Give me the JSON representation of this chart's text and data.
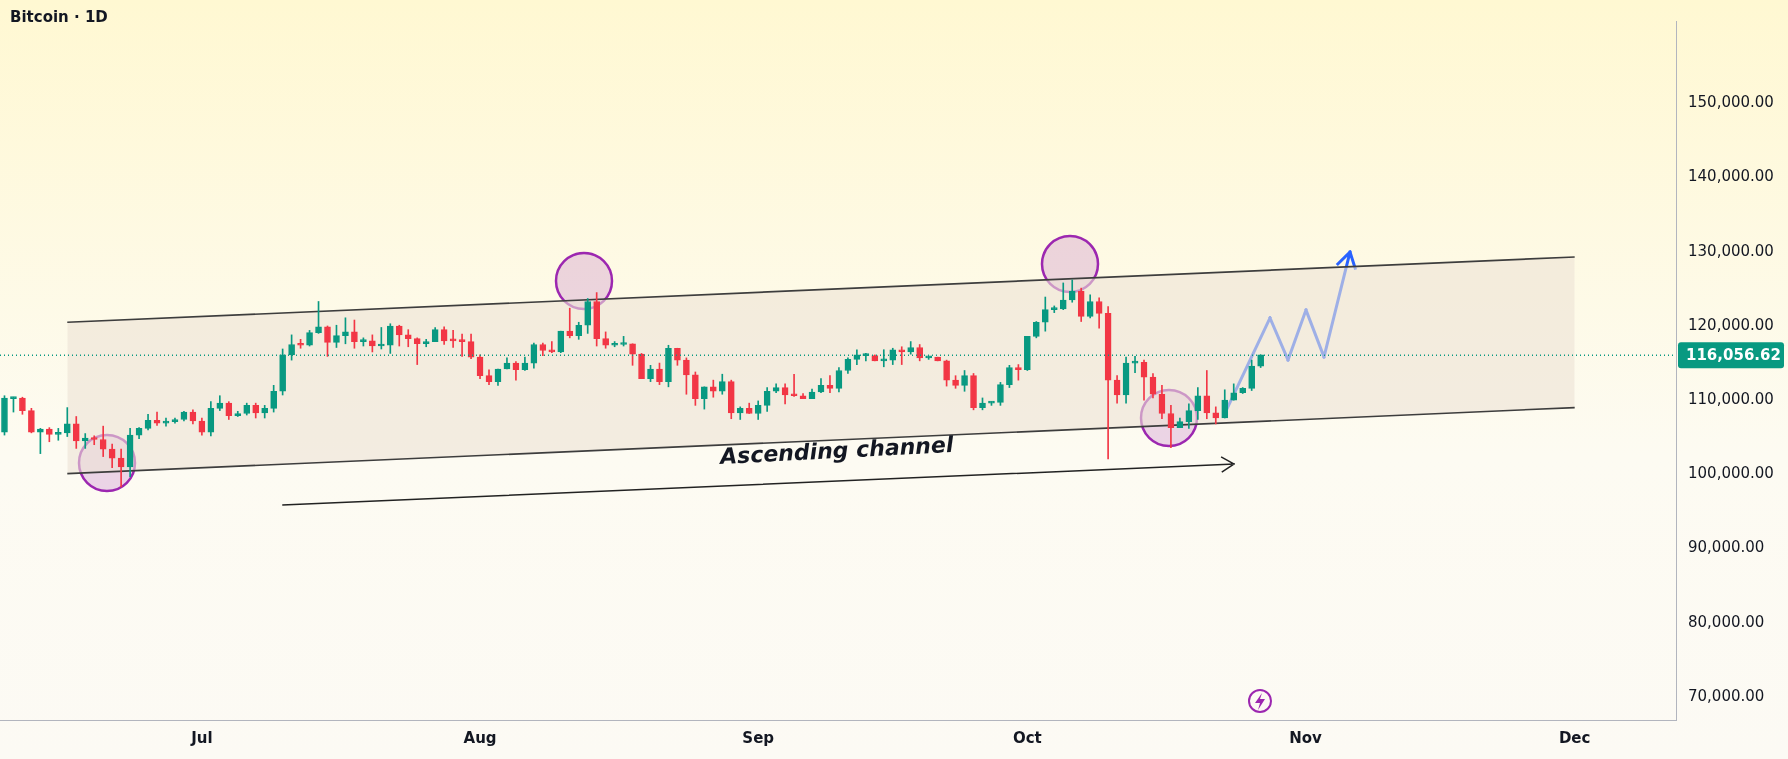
{
  "chart_data": {
    "type": "candlestick",
    "title": "Bitcoin · 1D",
    "x": [
      "--06-09",
      "--06-10",
      "--06-11",
      "--06-12",
      "--06-13",
      "--06-14",
      "--06-15",
      "--06-16",
      "--06-17",
      "--06-18",
      "--06-19",
      "--06-20",
      "--06-21",
      "--06-22",
      "--06-23",
      "--06-24",
      "--06-25",
      "--06-26",
      "--06-27",
      "--06-28",
      "--06-29",
      "--06-30",
      "--07-01",
      "--07-02",
      "--07-03",
      "--07-04",
      "--07-05",
      "--07-06",
      "--07-07",
      "--07-08",
      "--07-09",
      "--07-10",
      "--07-11",
      "--07-12",
      "--07-13",
      "--07-14",
      "--07-15",
      "--07-16",
      "--07-17",
      "--07-18",
      "--07-19",
      "--07-20",
      "--07-21",
      "--07-22",
      "--07-23",
      "--07-24",
      "--07-25",
      "--07-26",
      "--07-27",
      "--07-28",
      "--07-29",
      "--07-30",
      "--07-31",
      "--08-01",
      "--08-02",
      "--08-03",
      "--08-04",
      "--08-05",
      "--08-06",
      "--08-07",
      "--08-08",
      "--08-09",
      "--08-10",
      "--08-11",
      "--08-12",
      "--08-13",
      "--08-14",
      "--08-15",
      "--08-16",
      "--08-17",
      "--08-18",
      "--08-19",
      "--08-20",
      "--08-21",
      "--08-22",
      "--08-23",
      "--08-24",
      "--08-25",
      "--08-26",
      "--08-27",
      "--08-28",
      "--08-29",
      "--08-30",
      "--08-31",
      "--09-01",
      "--09-02",
      "--09-03",
      "--09-04",
      "--09-05",
      "--09-06",
      "--09-07",
      "--09-08",
      "--09-09",
      "--09-10",
      "--09-11",
      "--09-12",
      "--09-13",
      "--09-14",
      "--09-15",
      "--09-16",
      "--09-17",
      "--09-18",
      "--09-19",
      "--09-20",
      "--09-21",
      "--09-22",
      "--09-23",
      "--09-24",
      "--09-25",
      "--09-26",
      "--09-27",
      "--09-28",
      "--09-29",
      "--09-30",
      "--10-01",
      "--10-02",
      "--10-03",
      "--10-04",
      "--10-05",
      "--10-06",
      "--10-07",
      "--10-08",
      "--10-09",
      "--10-10",
      "--10-11",
      "--10-12",
      "--10-13",
      "--10-14",
      "--10-15",
      "--10-16",
      "--10-17",
      "--10-18",
      "--10-19",
      "--10-20",
      "--10-21",
      "--10-22",
      "--10-23",
      "--10-24",
      "--10-25",
      "--10-26",
      "--10-27"
    ],
    "ohlc": [
      [
        105700,
        110600,
        105300,
        110300
      ],
      [
        110200,
        110400,
        108400,
        110300
      ],
      [
        110300,
        110400,
        108100,
        108600
      ],
      [
        108600,
        108900,
        105600,
        105700
      ],
      [
        105700,
        106200,
        102800,
        106100
      ],
      [
        106100,
        106300,
        104400,
        105400
      ],
      [
        105400,
        106200,
        104600,
        105600
      ],
      [
        105600,
        109000,
        105100,
        106800
      ],
      [
        106800,
        107800,
        103500,
        104500
      ],
      [
        104500,
        105500,
        103500,
        104900
      ],
      [
        104900,
        105200,
        104000,
        104700
      ],
      [
        104700,
        106500,
        102400,
        103400
      ],
      [
        103400,
        104100,
        100900,
        102200
      ],
      [
        102200,
        103400,
        98300,
        101000
      ],
      [
        101000,
        106200,
        99700,
        105300
      ],
      [
        105300,
        106300,
        104800,
        106200
      ],
      [
        106200,
        108100,
        106000,
        107300
      ],
      [
        107300,
        108400,
        106600,
        106900
      ],
      [
        106900,
        107600,
        106500,
        107100
      ],
      [
        107100,
        107600,
        106900,
        107400
      ],
      [
        107400,
        108500,
        107200,
        108400
      ],
      [
        108400,
        108700,
        106800,
        107200
      ],
      [
        107200,
        107600,
        105300,
        105700
      ],
      [
        105700,
        109800,
        105200,
        108900
      ],
      [
        108900,
        110600,
        108600,
        109600
      ],
      [
        109600,
        109800,
        107400,
        107900
      ],
      [
        107900,
        108500,
        107800,
        108200
      ],
      [
        108200,
        109600,
        108000,
        109300
      ],
      [
        109300,
        109600,
        107600,
        108300
      ],
      [
        108300,
        109300,
        107600,
        108900
      ],
      [
        108900,
        112000,
        108400,
        111200
      ],
      [
        111200,
        116900,
        110700,
        116100
      ],
      [
        116100,
        118800,
        115400,
        117500
      ],
      [
        117500,
        118200,
        117000,
        117400
      ],
      [
        117400,
        119400,
        117300,
        119100
      ],
      [
        119100,
        123300,
        119000,
        119900
      ],
      [
        119900,
        120000,
        115900,
        117800
      ],
      [
        117800,
        120100,
        117100,
        118700
      ],
      [
        118700,
        121100,
        117600,
        119200
      ],
      [
        119200,
        120800,
        117000,
        117900
      ],
      [
        117900,
        118400,
        117300,
        118000
      ],
      [
        118000,
        118800,
        116500,
        117300
      ],
      [
        117300,
        119800,
        116900,
        117400
      ],
      [
        117400,
        120300,
        116300,
        120000
      ],
      [
        120000,
        120100,
        117300,
        118800
      ],
      [
        118800,
        119500,
        117200,
        118300
      ],
      [
        118300,
        118400,
        114800,
        117600
      ],
      [
        117600,
        118200,
        117200,
        117900
      ],
      [
        117900,
        119800,
        117900,
        119500
      ],
      [
        119500,
        119900,
        117500,
        118000
      ],
      [
        118100,
        119400,
        117100,
        118000
      ],
      [
        118000,
        118900,
        115900,
        117900
      ],
      [
        117900,
        118900,
        115600,
        115800
      ],
      [
        115800,
        116100,
        112900,
        113300
      ],
      [
        113300,
        114100,
        112100,
        112500
      ],
      [
        112500,
        114200,
        112000,
        114200
      ],
      [
        114200,
        115700,
        114200,
        115000
      ],
      [
        115000,
        115200,
        112700,
        114100
      ],
      [
        114100,
        115800,
        114000,
        115000
      ],
      [
        115000,
        117700,
        114300,
        117500
      ],
      [
        117500,
        117700,
        116000,
        116700
      ],
      [
        116700,
        117900,
        116400,
        116500
      ],
      [
        116500,
        119300,
        116400,
        119300
      ],
      [
        119300,
        122400,
        118400,
        118700
      ],
      [
        118700,
        120500,
        118200,
        120100
      ],
      [
        120100,
        123700,
        119000,
        123300
      ],
      [
        123300,
        124500,
        117300,
        118300
      ],
      [
        118300,
        119200,
        117000,
        117400
      ],
      [
        117400,
        117900,
        117200,
        117500
      ],
      [
        117500,
        118600,
        117300,
        117600
      ],
      [
        117600,
        117600,
        114700,
        116200
      ],
      [
        116200,
        116300,
        112900,
        112900
      ],
      [
        112900,
        114700,
        112500,
        114200
      ],
      [
        114200,
        115000,
        112100,
        112500
      ],
      [
        112500,
        117400,
        111800,
        117000
      ],
      [
        117000,
        117000,
        114700,
        115400
      ],
      [
        115400,
        115700,
        110800,
        113400
      ],
      [
        113400,
        113800,
        109300,
        110200
      ],
      [
        110200,
        111800,
        108800,
        111800
      ],
      [
        111800,
        112700,
        110400,
        111200
      ],
      [
        111200,
        113500,
        110800,
        112500
      ],
      [
        112500,
        112700,
        107500,
        108300
      ],
      [
        108300,
        109100,
        107400,
        108900
      ],
      [
        108900,
        109600,
        108200,
        108200
      ],
      [
        108200,
        109900,
        107400,
        109300
      ],
      [
        109300,
        111700,
        108500,
        111200
      ],
      [
        111200,
        112200,
        111000,
        111700
      ],
      [
        111700,
        112200,
        109500,
        110700
      ],
      [
        110700,
        113500,
        110500,
        110600
      ],
      [
        110600,
        110900,
        110200,
        110200
      ],
      [
        110200,
        111500,
        110200,
        111100
      ],
      [
        111100,
        112900,
        111000,
        112000
      ],
      [
        112000,
        113300,
        111000,
        111600
      ],
      [
        111600,
        114400,
        111100,
        114000
      ],
      [
        114000,
        115700,
        113600,
        115500
      ],
      [
        115500,
        116800,
        114800,
        116100
      ],
      [
        116000,
        116300,
        115300,
        116100
      ],
      [
        116000,
        116100,
        115300,
        115300
      ],
      [
        115300,
        116800,
        114500,
        115400
      ],
      [
        115400,
        117000,
        114800,
        116800
      ],
      [
        116800,
        117200,
        114800,
        116500
      ],
      [
        116500,
        117900,
        116200,
        117100
      ],
      [
        117100,
        117500,
        115300,
        115700
      ],
      [
        115700,
        115900,
        115500,
        115800
      ],
      [
        115800,
        115800,
        115300,
        115300
      ],
      [
        115300,
        115400,
        111900,
        112700
      ],
      [
        112700,
        113300,
        111600,
        112000
      ],
      [
        112000,
        114000,
        111200,
        113300
      ],
      [
        113300,
        113600,
        108700,
        109000
      ],
      [
        109000,
        110300,
        108700,
        109600
      ],
      [
        109600,
        109800,
        109300,
        109700
      ],
      [
        109700,
        112400,
        109300,
        112100
      ],
      [
        112100,
        114700,
        111700,
        114400
      ],
      [
        114400,
        114800,
        112700,
        114100
      ],
      [
        114100,
        118600,
        114000,
        118600
      ],
      [
        118600,
        120600,
        118400,
        120500
      ],
      [
        120500,
        123900,
        119300,
        122200
      ],
      [
        122200,
        122700,
        121800,
        122300
      ],
      [
        122300,
        125800,
        122200,
        123500
      ],
      [
        123500,
        126200,
        123200,
        124700
      ],
      [
        124700,
        125100,
        120600,
        121300
      ],
      [
        121300,
        124200,
        121100,
        123300
      ],
      [
        123300,
        123800,
        119700,
        121700
      ],
      [
        121700,
        122600,
        102100,
        112700
      ],
      [
        112700,
        113300,
        109600,
        110700
      ],
      [
        110700,
        115800,
        109600,
        115000
      ],
      [
        115000,
        115900,
        113700,
        115100
      ],
      [
        115100,
        115400,
        110000,
        113100
      ],
      [
        113100,
        113600,
        110300,
        110800
      ],
      [
        110800,
        112000,
        107500,
        108200
      ],
      [
        108200,
        109300,
        103600,
        106300
      ],
      [
        106300,
        107600,
        106300,
        107100
      ],
      [
        107100,
        109500,
        106200,
        108600
      ],
      [
        108600,
        111700,
        107400,
        110600
      ],
      [
        110600,
        114000,
        107500,
        108300
      ],
      [
        108300,
        109100,
        106800,
        107600
      ],
      [
        107600,
        111400,
        107600,
        110000
      ],
      [
        110000,
        112200,
        110000,
        111000
      ],
      [
        111000,
        111700,
        110900,
        111600
      ],
      [
        111600,
        115400,
        111300,
        114600
      ],
      [
        114600,
        116100,
        114400,
        116100
      ]
    ],
    "colors": [
      "#089981",
      "#089981",
      "#f23645",
      "#f23645",
      "#089981",
      "#f23645",
      "#089981",
      "#089981",
      "#f23645",
      "#089981",
      "#f23645",
      "#f23645",
      "#f23645",
      "#f23645",
      "#089981",
      "#089981",
      "#089981",
      "#f23645",
      "#089981",
      "#089981",
      "#089981",
      "#f23645",
      "#f23645",
      "#089981",
      "#089981",
      "#f23645",
      "#089981",
      "#089981",
      "#f23645",
      "#089981",
      "#089981",
      "#089981",
      "#089981",
      "#f23645",
      "#089981",
      "#089981",
      "#f23645",
      "#089981",
      "#089981",
      "#f23645",
      "#089981",
      "#f23645",
      "#089981",
      "#089981",
      "#f23645",
      "#f23645",
      "#f23645",
      "#089981",
      "#089981",
      "#f23645",
      "#f23645",
      "#f23645",
      "#f23645",
      "#f23645",
      "#f23645",
      "#089981",
      "#089981",
      "#f23645",
      "#089981",
      "#089981",
      "#f23645",
      "#f23645",
      "#089981",
      "#f23645",
      "#089981",
      "#089981",
      "#f23645",
      "#f23645",
      "#089981",
      "#089981",
      "#f23645",
      "#f23645",
      "#089981",
      "#f23645",
      "#089981",
      "#f23645",
      "#f23645",
      "#f23645",
      "#089981",
      "#f23645",
      "#089981",
      "#f23645",
      "#089981",
      "#f23645",
      "#089981",
      "#089981",
      "#089981",
      "#f23645",
      "#f23645",
      "#f23645",
      "#089981",
      "#089981",
      "#f23645",
      "#089981",
      "#089981",
      "#089981",
      "#089981",
      "#f23645",
      "#089981",
      "#089981",
      "#f23645",
      "#089981",
      "#f23645",
      "#089981",
      "#f23645",
      "#f23645",
      "#f23645",
      "#089981",
      "#f23645",
      "#089981",
      "#089981",
      "#089981",
      "#089981",
      "#f23645",
      "#089981",
      "#089981",
      "#089981",
      "#089981",
      "#089981",
      "#089981",
      "#f23645",
      "#089981",
      "#f23645",
      "#f23645",
      "#f23645",
      "#089981",
      "#089981",
      "#f23645",
      "#f23645",
      "#f23645",
      "#f23645",
      "#089981",
      "#089981",
      "#089981",
      "#f23645",
      "#f23645",
      "#089981",
      "#089981",
      "#089981",
      "#089981",
      "#089981"
    ],
    "series": [
      {
        "type": "line",
        "color": "#3d3d3d",
        "x": [
          "--06-16",
          "--12-01"
        ],
        "values": [
          120500,
          129300
        ],
        "lower": [
          100100,
          109000
        ],
        "upper": [
          120500,
          129300
        ]
      },
      {
        "type": "line",
        "color": "#3d3d3d",
        "x": [
          "--06-16",
          "--12-01"
        ],
        "values": [
          100100,
          109000
        ]
      }
    ],
    "xlim": [
      "--06-08T12:00",
      "--12-12T07:00"
    ],
    "xticks": [
      {
        "value": "--07-01",
        "label": "Jul"
      },
      {
        "value": "--08-01",
        "label": "Aug"
      },
      {
        "value": "--09-01",
        "label": "Sep"
      },
      {
        "value": "--10-01",
        "label": "Oct"
      },
      {
        "value": "--11-01",
        "label": "Nov"
      },
      {
        "value": "--12-01",
        "label": "Dec"
      }
    ],
    "ylim": [
      66900,
      161100
    ],
    "yticks": [
      {
        "value": 70000,
        "label": "70,000.00"
      },
      {
        "value": 80000,
        "label": "80,000.00"
      },
      {
        "value": 90000,
        "label": "90,000.00"
      },
      {
        "value": 100000,
        "label": "100,000.00"
      },
      {
        "value": 110000,
        "label": "110,000.00"
      },
      {
        "value": 120000,
        "label": "120,000.00"
      },
      {
        "value": 130000,
        "label": "130,000.00"
      },
      {
        "value": 140000,
        "label": "140,000.00"
      },
      {
        "value": 150000,
        "label": "150,000.00"
      }
    ],
    "ref_lines": [
      {
        "axis": "y",
        "value": 116056.62,
        "label": "116,056.62",
        "color": "#089981",
        "line_style": "dotted"
      }
    ],
    "annotations": [
      "Ascending channel"
    ]
  }
}
